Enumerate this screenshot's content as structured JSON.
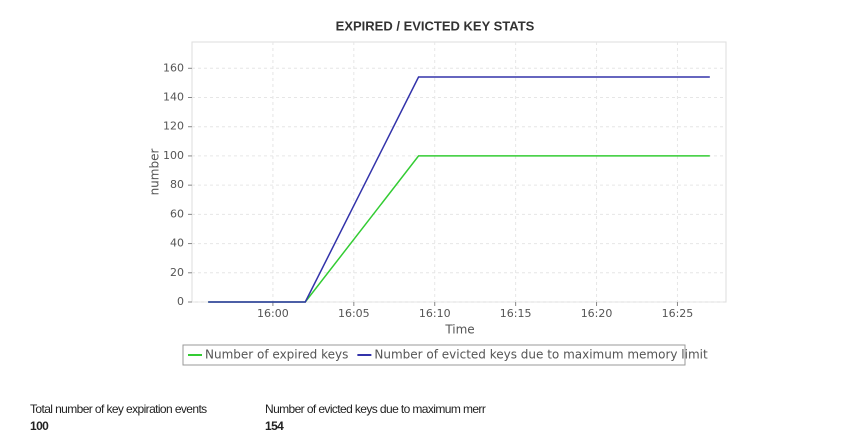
{
  "chart_data": {
    "type": "line",
    "title": "EXPIRED / EVICTED KEY STATS",
    "x_label": "Time",
    "y_label": "number",
    "x": [
      "15:56",
      "16:00",
      "16:01",
      "16:02",
      "16:09",
      "16:11",
      "16:12",
      "16:17",
      "16:22",
      "16:27"
    ],
    "series": [
      {
        "name": "Number of expired keys",
        "color": "#33cc33",
        "values": [
          0,
          0,
          0,
          0,
          100,
          100,
          100,
          100,
          100,
          100
        ]
      },
      {
        "name": "Number of evicted keys due to maximum memory limit",
        "color": "#3333aa",
        "values": [
          0,
          0,
          0,
          0,
          154,
          154,
          154,
          154,
          154,
          154
        ]
      }
    ],
    "xlim": [
      "15:55",
      "16:28"
    ],
    "xticks": [
      "16:00",
      "16:05",
      "16:10",
      "16:15",
      "16:20",
      "16:25"
    ],
    "ylim": [
      0,
      178
    ],
    "yticks": [
      0,
      20,
      40,
      60,
      80,
      100,
      120,
      140,
      160
    ],
    "grid": true
  },
  "stats": [
    {
      "label": "Total number of key expiration events",
      "value": "100"
    },
    {
      "label": "Number of evicted keys due to maximum merr",
      "value": "154"
    }
  ]
}
